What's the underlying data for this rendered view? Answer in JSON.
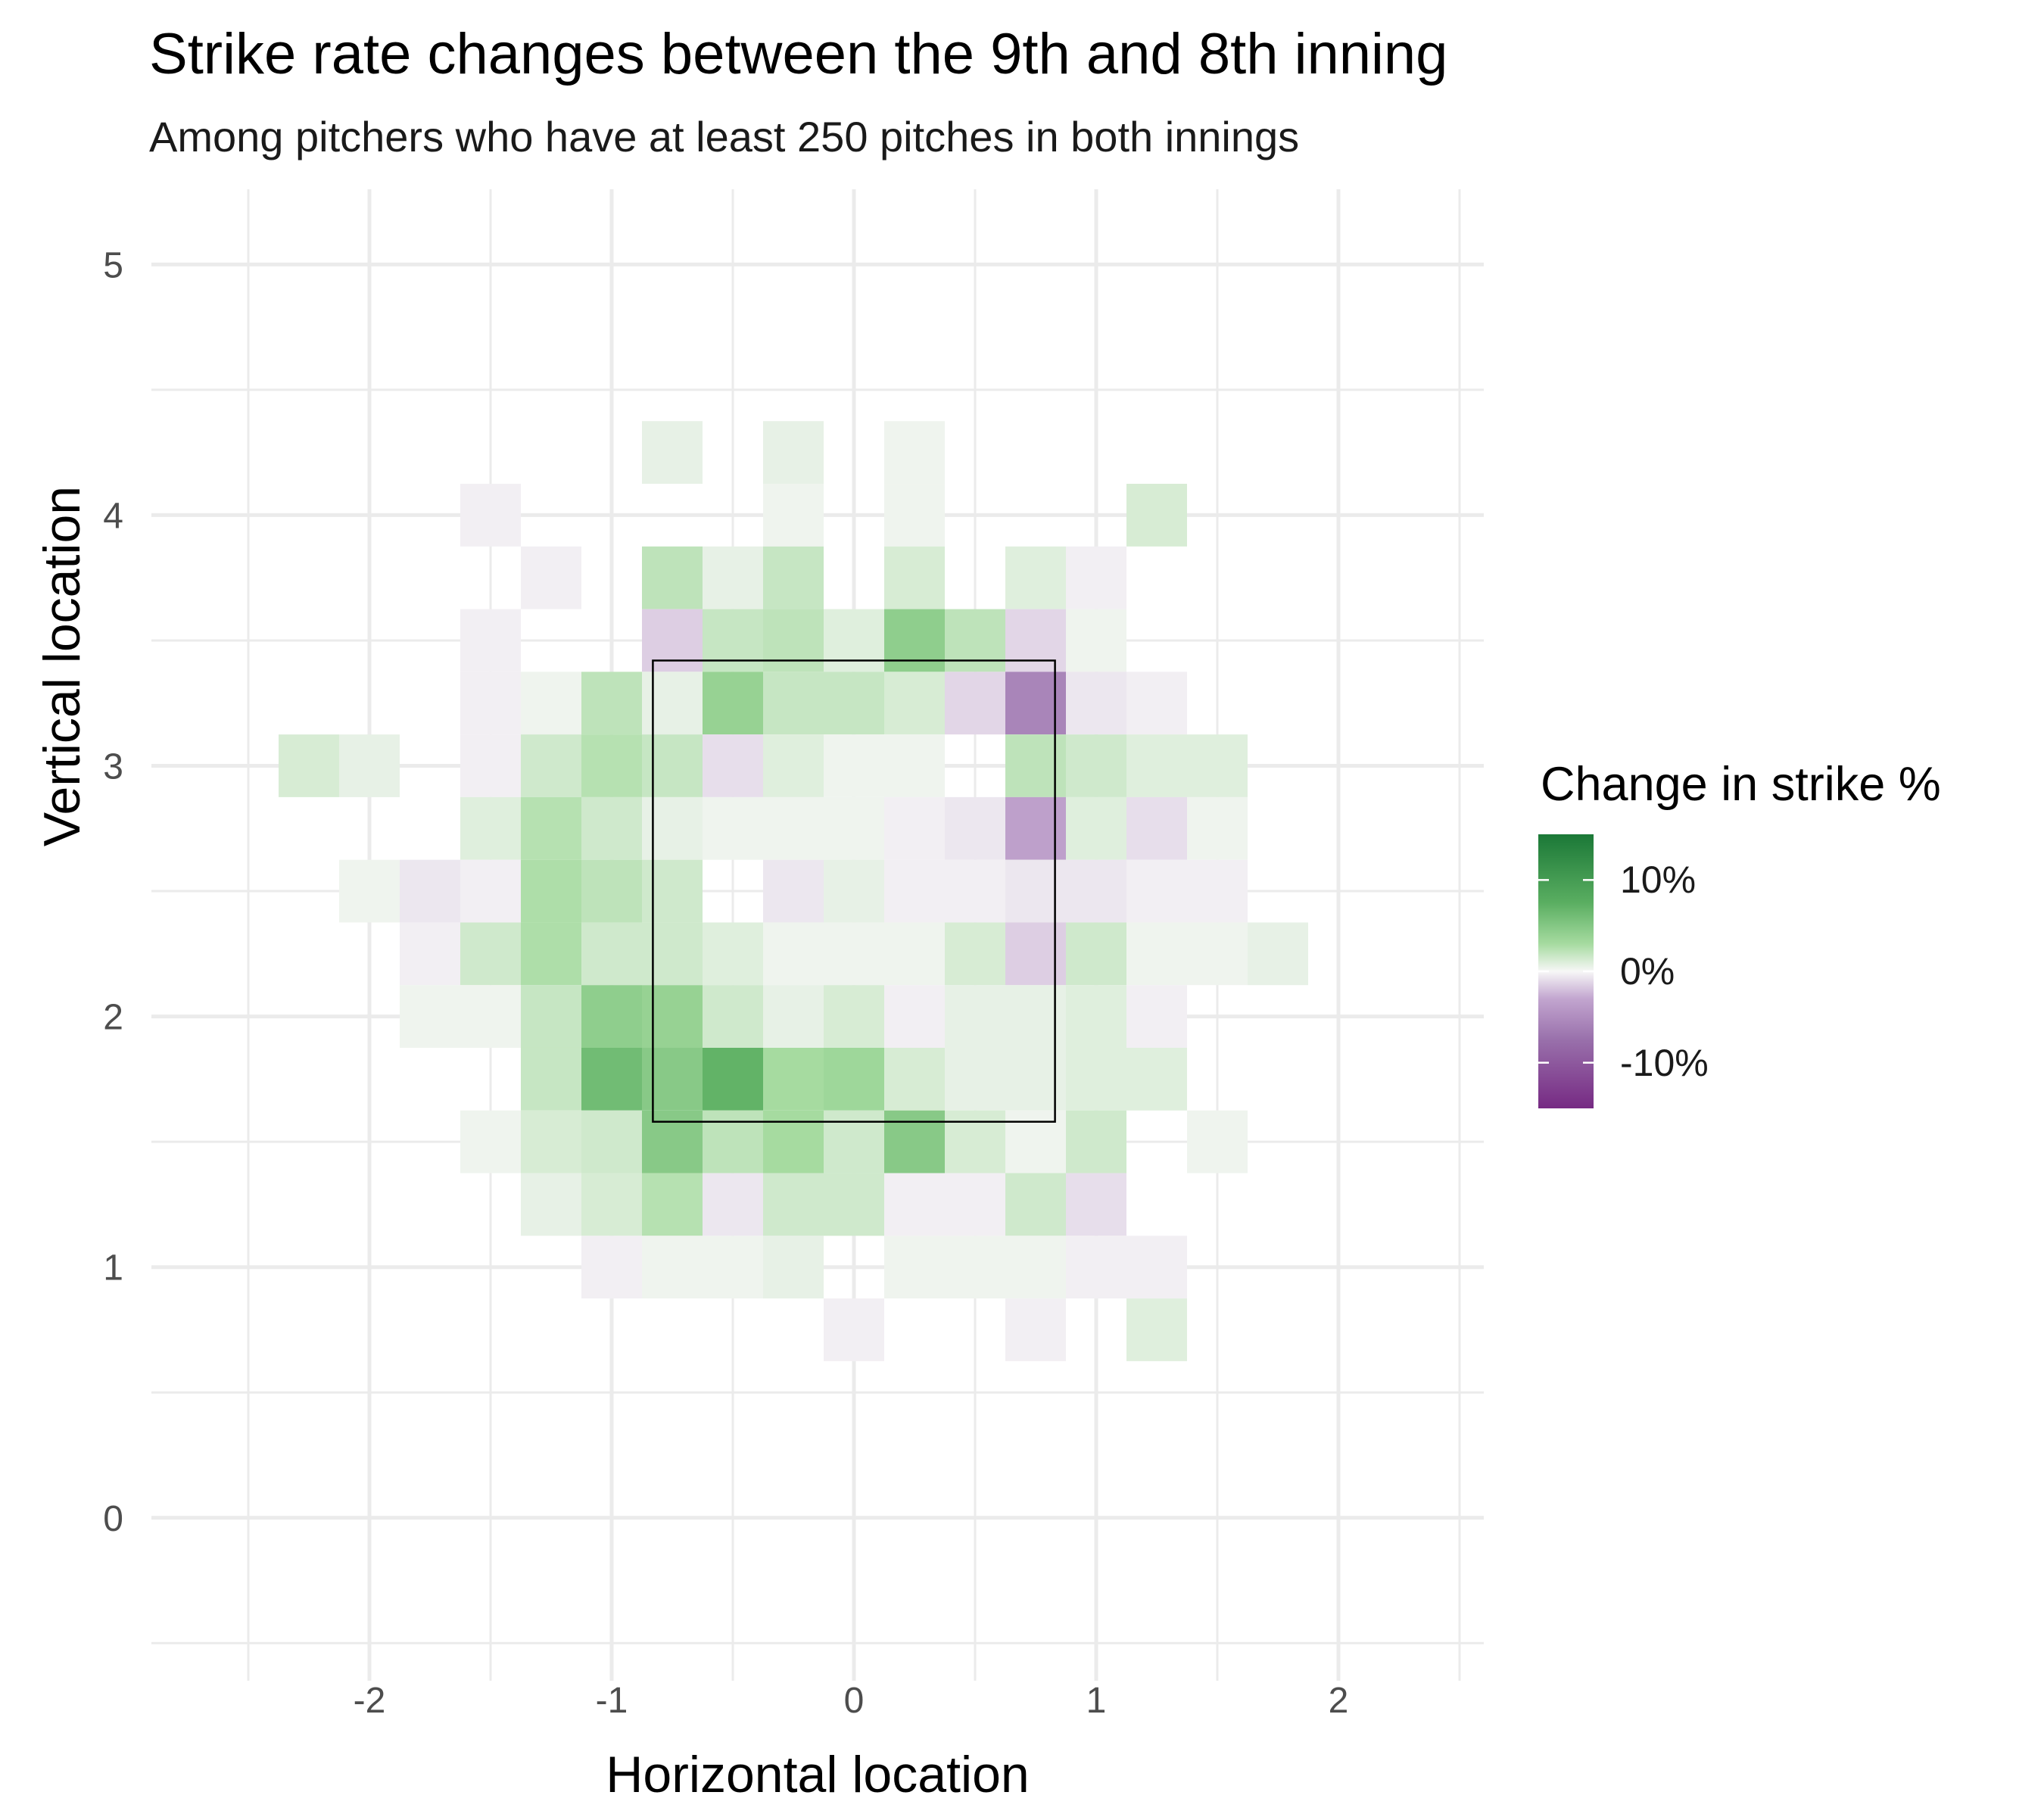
{
  "chart_data": {
    "type": "heatmap",
    "title": "Strike rate changes between the 9th and 8th inning",
    "subtitle": "Among pitchers who have at least 250 pitches in both innings",
    "xlabel": "Horizontal location",
    "ylabel": "Vertical location",
    "xlim": [
      -2.9,
      2.6
    ],
    "ylim": [
      -0.65,
      5.3
    ],
    "x_ticks": [
      -2,
      -1,
      0,
      1,
      2
    ],
    "x_tick_labels": [
      "-2",
      "-1",
      "0",
      "1",
      "2"
    ],
    "y_ticks": [
      0,
      1,
      2,
      3,
      4,
      5
    ],
    "y_tick_labels": [
      "0",
      "1",
      "2",
      "3",
      "4",
      "5"
    ],
    "grid": true,
    "bin_width": 0.25,
    "bin_height": 0.25,
    "strike_zone": {
      "x": [
        -0.83,
        0.83
      ],
      "y": [
        1.58,
        3.42
      ]
    },
    "legend": {
      "title": "Change in strike %",
      "position": "right",
      "ticks": [
        0.1,
        0,
        -0.1
      ],
      "tick_labels": [
        "10%",
        "0%",
        "-10%"
      ],
      "range": [
        -0.15,
        0.15
      ],
      "colors": {
        "high": "#1b7837",
        "mid": "#f7f7f7",
        "low": "#762a83"
      }
    },
    "cells": [
      {
        "x": -0.75,
        "y": 4.25,
        "value": 0.01
      },
      {
        "x": -0.25,
        "y": 4.25,
        "value": 0.01
      },
      {
        "x": 0.25,
        "y": 4.25,
        "value": 0.005
      },
      {
        "x": -1.5,
        "y": 4.0,
        "value": -0.005
      },
      {
        "x": -0.25,
        "y": 4.0,
        "value": 0.005
      },
      {
        "x": 0.25,
        "y": 4.0,
        "value": 0.005
      },
      {
        "x": 1.25,
        "y": 4.0,
        "value": 0.02
      },
      {
        "x": -1.25,
        "y": 3.75,
        "value": -0.005
      },
      {
        "x": -0.75,
        "y": 3.75,
        "value": 0.035
      },
      {
        "x": -0.5,
        "y": 3.75,
        "value": 0.01
      },
      {
        "x": -0.25,
        "y": 3.75,
        "value": 0.03
      },
      {
        "x": 0.25,
        "y": 3.75,
        "value": 0.02
      },
      {
        "x": 0.75,
        "y": 3.75,
        "value": 0.015
      },
      {
        "x": 1.0,
        "y": 3.75,
        "value": -0.005
      },
      {
        "x": -1.5,
        "y": 3.5,
        "value": -0.005
      },
      {
        "x": -0.75,
        "y": 3.5,
        "value": -0.025
      },
      {
        "x": -0.5,
        "y": 3.5,
        "value": 0.03
      },
      {
        "x": -0.25,
        "y": 3.5,
        "value": 0.035
      },
      {
        "x": 0.0,
        "y": 3.5,
        "value": 0.015
      },
      {
        "x": 0.25,
        "y": 3.5,
        "value": 0.065
      },
      {
        "x": 0.5,
        "y": 3.5,
        "value": 0.035
      },
      {
        "x": 0.75,
        "y": 3.5,
        "value": -0.02
      },
      {
        "x": 1.0,
        "y": 3.5,
        "value": 0.005
      },
      {
        "x": -1.5,
        "y": 3.25,
        "value": -0.005
      },
      {
        "x": -1.25,
        "y": 3.25,
        "value": 0.005
      },
      {
        "x": -1.0,
        "y": 3.25,
        "value": 0.035
      },
      {
        "x": -0.75,
        "y": 3.25,
        "value": 0.01
      },
      {
        "x": -0.5,
        "y": 3.25,
        "value": 0.06
      },
      {
        "x": -0.25,
        "y": 3.25,
        "value": 0.03
      },
      {
        "x": 0.0,
        "y": 3.25,
        "value": 0.03
      },
      {
        "x": 0.25,
        "y": 3.25,
        "value": 0.02
      },
      {
        "x": 0.5,
        "y": 3.25,
        "value": -0.02
      },
      {
        "x": 0.75,
        "y": 3.25,
        "value": -0.08
      },
      {
        "x": 1.0,
        "y": 3.25,
        "value": -0.01
      },
      {
        "x": 1.25,
        "y": 3.25,
        "value": -0.005
      },
      {
        "x": -2.25,
        "y": 3.0,
        "value": 0.02
      },
      {
        "x": -2.0,
        "y": 3.0,
        "value": 0.01
      },
      {
        "x": -1.5,
        "y": 3.0,
        "value": -0.005
      },
      {
        "x": -1.25,
        "y": 3.0,
        "value": 0.025
      },
      {
        "x": -1.0,
        "y": 3.0,
        "value": 0.04
      },
      {
        "x": -0.75,
        "y": 3.0,
        "value": 0.03
      },
      {
        "x": -0.5,
        "y": 3.0,
        "value": -0.015
      },
      {
        "x": -0.25,
        "y": 3.0,
        "value": 0.015
      },
      {
        "x": 0.0,
        "y": 3.0,
        "value": 0.005
      },
      {
        "x": 0.25,
        "y": 3.0,
        "value": 0.005
      },
      {
        "x": 0.75,
        "y": 3.0,
        "value": 0.035
      },
      {
        "x": 1.0,
        "y": 3.0,
        "value": 0.025
      },
      {
        "x": 1.25,
        "y": 3.0,
        "value": 0.015
      },
      {
        "x": 1.5,
        "y": 3.0,
        "value": 0.015
      },
      {
        "x": -1.5,
        "y": 2.75,
        "value": 0.015
      },
      {
        "x": -1.25,
        "y": 2.75,
        "value": 0.04
      },
      {
        "x": -1.0,
        "y": 2.75,
        "value": 0.025
      },
      {
        "x": -0.75,
        "y": 2.75,
        "value": 0.01
      },
      {
        "x": -0.5,
        "y": 2.75,
        "value": 0.005
      },
      {
        "x": -0.25,
        "y": 2.75,
        "value": 0.005
      },
      {
        "x": 0.0,
        "y": 2.75,
        "value": 0.005
      },
      {
        "x": 0.25,
        "y": 2.75,
        "value": -0.005
      },
      {
        "x": 0.5,
        "y": 2.75,
        "value": -0.01
      },
      {
        "x": 0.75,
        "y": 2.75,
        "value": -0.055
      },
      {
        "x": 1.0,
        "y": 2.75,
        "value": 0.015
      },
      {
        "x": 1.25,
        "y": 2.75,
        "value": -0.015
      },
      {
        "x": 1.5,
        "y": 2.75,
        "value": 0.005
      },
      {
        "x": -2.0,
        "y": 2.5,
        "value": 0.005
      },
      {
        "x": -1.75,
        "y": 2.5,
        "value": -0.01
      },
      {
        "x": -1.5,
        "y": 2.5,
        "value": -0.005
      },
      {
        "x": -1.25,
        "y": 2.5,
        "value": 0.045
      },
      {
        "x": -1.0,
        "y": 2.5,
        "value": 0.035
      },
      {
        "x": -0.75,
        "y": 2.5,
        "value": 0.025
      },
      {
        "x": -0.25,
        "y": 2.5,
        "value": -0.01
      },
      {
        "x": 0.0,
        "y": 2.5,
        "value": 0.01
      },
      {
        "x": 0.25,
        "y": 2.5,
        "value": -0.005
      },
      {
        "x": 0.5,
        "y": 2.5,
        "value": -0.005
      },
      {
        "x": 0.75,
        "y": 2.5,
        "value": -0.01
      },
      {
        "x": 1.0,
        "y": 2.5,
        "value": -0.01
      },
      {
        "x": 1.25,
        "y": 2.5,
        "value": -0.005
      },
      {
        "x": 1.5,
        "y": 2.5,
        "value": -0.005
      },
      {
        "x": -1.75,
        "y": 2.25,
        "value": -0.005
      },
      {
        "x": -1.5,
        "y": 2.25,
        "value": 0.025
      },
      {
        "x": -1.25,
        "y": 2.25,
        "value": 0.045
      },
      {
        "x": -1.0,
        "y": 2.25,
        "value": 0.025
      },
      {
        "x": -0.75,
        "y": 2.25,
        "value": 0.025
      },
      {
        "x": -0.5,
        "y": 2.25,
        "value": 0.015
      },
      {
        "x": -0.25,
        "y": 2.25,
        "value": 0.005
      },
      {
        "x": 0.0,
        "y": 2.25,
        "value": 0.005
      },
      {
        "x": 0.25,
        "y": 2.25,
        "value": 0.005
      },
      {
        "x": 0.5,
        "y": 2.25,
        "value": 0.02
      },
      {
        "x": 0.75,
        "y": 2.25,
        "value": -0.025
      },
      {
        "x": 1.0,
        "y": 2.25,
        "value": 0.025
      },
      {
        "x": 1.25,
        "y": 2.25,
        "value": 0.005
      },
      {
        "x": 1.5,
        "y": 2.25,
        "value": 0.005
      },
      {
        "x": 1.75,
        "y": 2.25,
        "value": 0.01
      },
      {
        "x": -1.75,
        "y": 2.0,
        "value": 0.005
      },
      {
        "x": -1.5,
        "y": 2.0,
        "value": 0.005
      },
      {
        "x": -1.25,
        "y": 2.0,
        "value": 0.03
      },
      {
        "x": -1.0,
        "y": 2.0,
        "value": 0.065
      },
      {
        "x": -0.75,
        "y": 2.0,
        "value": 0.06
      },
      {
        "x": -0.5,
        "y": 2.0,
        "value": 0.025
      },
      {
        "x": -0.25,
        "y": 2.0,
        "value": 0.01
      },
      {
        "x": 0.0,
        "y": 2.0,
        "value": 0.02
      },
      {
        "x": 0.25,
        "y": 2.0,
        "value": -0.005
      },
      {
        "x": 0.5,
        "y": 2.0,
        "value": 0.01
      },
      {
        "x": 0.75,
        "y": 2.0,
        "value": 0.01
      },
      {
        "x": 1.0,
        "y": 2.0,
        "value": 0.015
      },
      {
        "x": 1.25,
        "y": 2.0,
        "value": -0.005
      },
      {
        "x": -1.25,
        "y": 1.75,
        "value": 0.03
      },
      {
        "x": -1.0,
        "y": 1.75,
        "value": 0.085
      },
      {
        "x": -0.75,
        "y": 1.75,
        "value": 0.07
      },
      {
        "x": -0.5,
        "y": 1.75,
        "value": 0.095
      },
      {
        "x": -0.25,
        "y": 1.75,
        "value": 0.05
      },
      {
        "x": 0.0,
        "y": 1.75,
        "value": 0.055
      },
      {
        "x": 0.25,
        "y": 1.75,
        "value": 0.02
      },
      {
        "x": 0.5,
        "y": 1.75,
        "value": 0.01
      },
      {
        "x": 0.75,
        "y": 1.75,
        "value": 0.01
      },
      {
        "x": 1.0,
        "y": 1.75,
        "value": 0.015
      },
      {
        "x": 1.25,
        "y": 1.75,
        "value": 0.015
      },
      {
        "x": -1.5,
        "y": 1.5,
        "value": 0.005
      },
      {
        "x": -1.25,
        "y": 1.5,
        "value": 0.02
      },
      {
        "x": -1.0,
        "y": 1.5,
        "value": 0.025
      },
      {
        "x": -0.75,
        "y": 1.5,
        "value": 0.07
      },
      {
        "x": -0.5,
        "y": 1.5,
        "value": 0.035
      },
      {
        "x": -0.25,
        "y": 1.5,
        "value": 0.05
      },
      {
        "x": 0.0,
        "y": 1.5,
        "value": 0.025
      },
      {
        "x": 0.25,
        "y": 1.5,
        "value": 0.07
      },
      {
        "x": 0.5,
        "y": 1.5,
        "value": 0.02
      },
      {
        "x": 0.75,
        "y": 1.5,
        "value": 0.005
      },
      {
        "x": 1.0,
        "y": 1.5,
        "value": 0.025
      },
      {
        "x": 1.5,
        "y": 1.5,
        "value": 0.005
      },
      {
        "x": -1.25,
        "y": 1.25,
        "value": 0.01
      },
      {
        "x": -1.0,
        "y": 1.25,
        "value": 0.02
      },
      {
        "x": -0.75,
        "y": 1.25,
        "value": 0.04
      },
      {
        "x": -0.5,
        "y": 1.25,
        "value": -0.01
      },
      {
        "x": -0.25,
        "y": 1.25,
        "value": 0.025
      },
      {
        "x": 0.0,
        "y": 1.25,
        "value": 0.025
      },
      {
        "x": 0.25,
        "y": 1.25,
        "value": -0.005
      },
      {
        "x": 0.5,
        "y": 1.25,
        "value": -0.005
      },
      {
        "x": 0.75,
        "y": 1.25,
        "value": 0.025
      },
      {
        "x": 1.0,
        "y": 1.25,
        "value": -0.015
      },
      {
        "x": -1.0,
        "y": 1.0,
        "value": -0.005
      },
      {
        "x": -0.75,
        "y": 1.0,
        "value": 0.005
      },
      {
        "x": -0.5,
        "y": 1.0,
        "value": 0.005
      },
      {
        "x": -0.25,
        "y": 1.0,
        "value": 0.01
      },
      {
        "x": 0.25,
        "y": 1.0,
        "value": 0.005
      },
      {
        "x": 0.5,
        "y": 1.0,
        "value": 0.005
      },
      {
        "x": 0.75,
        "y": 1.0,
        "value": 0.005
      },
      {
        "x": 1.0,
        "y": 1.0,
        "value": -0.005
      },
      {
        "x": 1.25,
        "y": 1.0,
        "value": -0.005
      },
      {
        "x": 0.0,
        "y": 0.75,
        "value": -0.005
      },
      {
        "x": 0.75,
        "y": 0.75,
        "value": -0.005
      },
      {
        "x": 1.25,
        "y": 0.75,
        "value": 0.015
      }
    ]
  }
}
